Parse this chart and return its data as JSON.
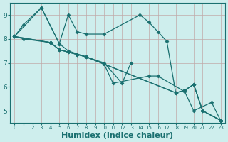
{
  "background_color": "#ceeeed",
  "grid_color": "#c0a8a8",
  "line_color": "#1a7070",
  "marker_color": "#1a7070",
  "xlabel": "Humidex (Indice chaleur)",
  "xlabel_fontsize": 8,
  "ytick_labels": [
    "5",
    "6",
    "7",
    "8",
    "9"
  ],
  "ytick_values": [
    5,
    6,
    7,
    8,
    9
  ],
  "xtick_values": [
    0,
    1,
    2,
    3,
    4,
    5,
    6,
    7,
    8,
    9,
    10,
    11,
    12,
    13,
    14,
    15,
    16,
    17,
    18,
    19,
    20,
    21,
    22,
    23
  ],
  "xlim": [
    -0.5,
    23.5
  ],
  "ylim": [
    4.5,
    9.5
  ],
  "series": [
    {
      "x": [
        0,
        1,
        3,
        5,
        6,
        7,
        8,
        10,
        14,
        15,
        16,
        17,
        18,
        19,
        20,
        21,
        23
      ],
      "y": [
        8.1,
        8.6,
        9.3,
        7.8,
        9.0,
        8.3,
        8.2,
        8.2,
        9.0,
        8.7,
        8.3,
        7.9,
        5.75,
        5.85,
        6.1,
        5.0,
        4.6
      ]
    },
    {
      "x": [
        0,
        3,
        5,
        6,
        10,
        12,
        13
      ],
      "y": [
        8.1,
        9.3,
        7.8,
        7.5,
        7.0,
        6.15,
        7.0
      ]
    },
    {
      "x": [
        0,
        4,
        5,
        6,
        7,
        8,
        10,
        11,
        15,
        16,
        19,
        20,
        22,
        23
      ],
      "y": [
        8.1,
        7.85,
        7.55,
        7.45,
        7.35,
        7.25,
        6.95,
        6.15,
        6.45,
        6.45,
        5.8,
        5.0,
        5.35,
        4.6
      ]
    },
    {
      "x": [
        0,
        4,
        5,
        6,
        7,
        8,
        10,
        18,
        19,
        20,
        21,
        23
      ],
      "y": [
        8.1,
        7.85,
        7.55,
        7.45,
        7.35,
        7.25,
        6.95,
        5.75,
        5.85,
        6.1,
        5.0,
        4.6
      ]
    },
    {
      "x": [
        0,
        1,
        4,
        5,
        6,
        7,
        8,
        10,
        18,
        19,
        20,
        21,
        23
      ],
      "y": [
        8.1,
        8.0,
        7.85,
        7.55,
        7.45,
        7.35,
        7.25,
        6.95,
        5.75,
        5.85,
        6.1,
        5.0,
        4.6
      ]
    }
  ]
}
